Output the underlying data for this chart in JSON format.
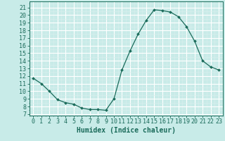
{
  "x": [
    0,
    1,
    2,
    3,
    4,
    5,
    6,
    7,
    8,
    9,
    10,
    11,
    12,
    13,
    14,
    15,
    16,
    17,
    18,
    19,
    20,
    21,
    22,
    23
  ],
  "y": [
    11.7,
    11.0,
    10.0,
    8.9,
    8.5,
    8.3,
    7.8,
    7.6,
    7.6,
    7.5,
    9.0,
    12.8,
    15.3,
    17.5,
    19.3,
    20.7,
    20.6,
    20.4,
    19.8,
    18.5,
    16.6,
    14.0,
    13.2,
    12.8
  ],
  "line_color": "#1a6b5a",
  "marker": "D",
  "marker_size": 2.0,
  "bg_color": "#c8ebe8",
  "grid_color": "#ffffff",
  "grid_minor_color": "#daf0ee",
  "xlabel": "Humidex (Indice chaleur)",
  "xlabel_fontsize": 7,
  "tick_fontsize": 6,
  "xlim": [
    -0.5,
    23.5
  ],
  "ylim": [
    6.8,
    21.8
  ],
  "yticks": [
    7,
    8,
    9,
    10,
    11,
    12,
    13,
    14,
    15,
    16,
    17,
    18,
    19,
    20,
    21
  ],
  "xticks": [
    0,
    1,
    2,
    3,
    4,
    5,
    6,
    7,
    8,
    9,
    10,
    11,
    12,
    13,
    14,
    15,
    16,
    17,
    18,
    19,
    20,
    21,
    22,
    23
  ]
}
